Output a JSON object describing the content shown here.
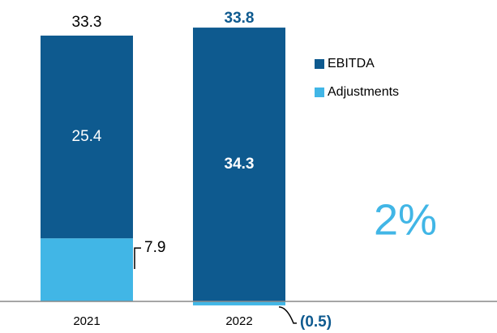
{
  "chart_data": {
    "type": "stacked-bar",
    "categories": [
      "2021",
      "2022"
    ],
    "series": [
      {
        "name": "EBITDA",
        "color": "#0e5a8f",
        "values": [
          25.4,
          34.3
        ]
      },
      {
        "name": "Adjustments",
        "color": "#41b6e6",
        "values": [
          7.9,
          -0.5
        ],
        "value_labels": [
          "7.9",
          "(0.5)"
        ]
      }
    ],
    "totals": [
      33.3,
      33.8
    ],
    "annotation": "2%",
    "legend": "right"
  }
}
